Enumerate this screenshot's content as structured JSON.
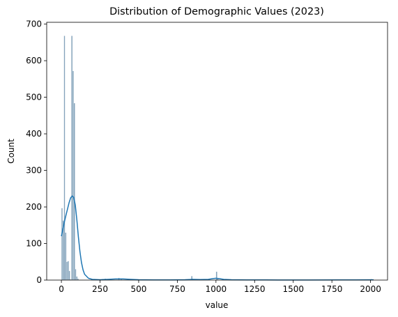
{
  "chart_data": {
    "type": "bar",
    "title": "Distribution of Demographic Values (2023)",
    "xlabel": "value",
    "ylabel": "Count",
    "xlim": [
      -95,
      2110
    ],
    "ylim": [
      0,
      705
    ],
    "xticks": [
      0,
      250,
      500,
      750,
      1000,
      1250,
      1500,
      1750,
      2000
    ],
    "yticks": [
      0,
      100,
      200,
      300,
      400,
      500,
      600,
      700
    ],
    "grid": false,
    "bar_color": "#6f93af",
    "kde_color": "#1f77b4",
    "bins": [
      {
        "x0": 0,
        "x1": 8,
        "count": 197
      },
      {
        "x0": 8,
        "x1": 16,
        "count": 163
      },
      {
        "x0": 16,
        "x1": 24,
        "count": 668
      },
      {
        "x0": 24,
        "x1": 32,
        "count": 130
      },
      {
        "x0": 32,
        "x1": 40,
        "count": 50
      },
      {
        "x0": 40,
        "x1": 48,
        "count": 52
      },
      {
        "x0": 48,
        "x1": 56,
        "count": 25
      },
      {
        "x0": 56,
        "x1": 64,
        "count": 2
      },
      {
        "x0": 64,
        "x1": 72,
        "count": 668
      },
      {
        "x0": 72,
        "x1": 80,
        "count": 572
      },
      {
        "x0": 80,
        "x1": 88,
        "count": 484
      },
      {
        "x0": 88,
        "x1": 96,
        "count": 30
      },
      {
        "x0": 96,
        "x1": 104,
        "count": 10
      },
      {
        "x0": 104,
        "x1": 112,
        "count": 4
      },
      {
        "x0": 264,
        "x1": 272,
        "count": 3
      },
      {
        "x0": 280,
        "x1": 288,
        "count": 4
      },
      {
        "x0": 368,
        "x1": 376,
        "count": 6
      },
      {
        "x0": 384,
        "x1": 392,
        "count": 4
      },
      {
        "x0": 840,
        "x1": 848,
        "count": 11
      },
      {
        "x0": 1000,
        "x1": 1008,
        "count": 23
      },
      {
        "x0": 1008,
        "x1": 1016,
        "count": 6
      },
      {
        "x0": 2000,
        "x1": 2008,
        "count": 3
      },
      {
        "x0": 2008,
        "x1": 2016,
        "count": 2
      }
    ],
    "kde": {
      "x": [
        0,
        10,
        20,
        30,
        40,
        50,
        60,
        70,
        80,
        90,
        100,
        110,
        120,
        130,
        140,
        150,
        175,
        200,
        250,
        300,
        350,
        400,
        450,
        500,
        600,
        700,
        800,
        850,
        900,
        950,
        980,
        1000,
        1020,
        1050,
        1100,
        1200,
        1400,
        1600,
        1800,
        1900,
        2000,
        2020
      ],
      "y": [
        120,
        140,
        160,
        178,
        195,
        212,
        225,
        230,
        226,
        205,
        165,
        118,
        78,
        48,
        28,
        16,
        5,
        2,
        1,
        2,
        3,
        3,
        2,
        1,
        0.5,
        0.5,
        1,
        2,
        1.5,
        2,
        4,
        5,
        4,
        2,
        1,
        0.5,
        0.3,
        0.3,
        0.4,
        0.5,
        0.8,
        0.7
      ]
    }
  }
}
